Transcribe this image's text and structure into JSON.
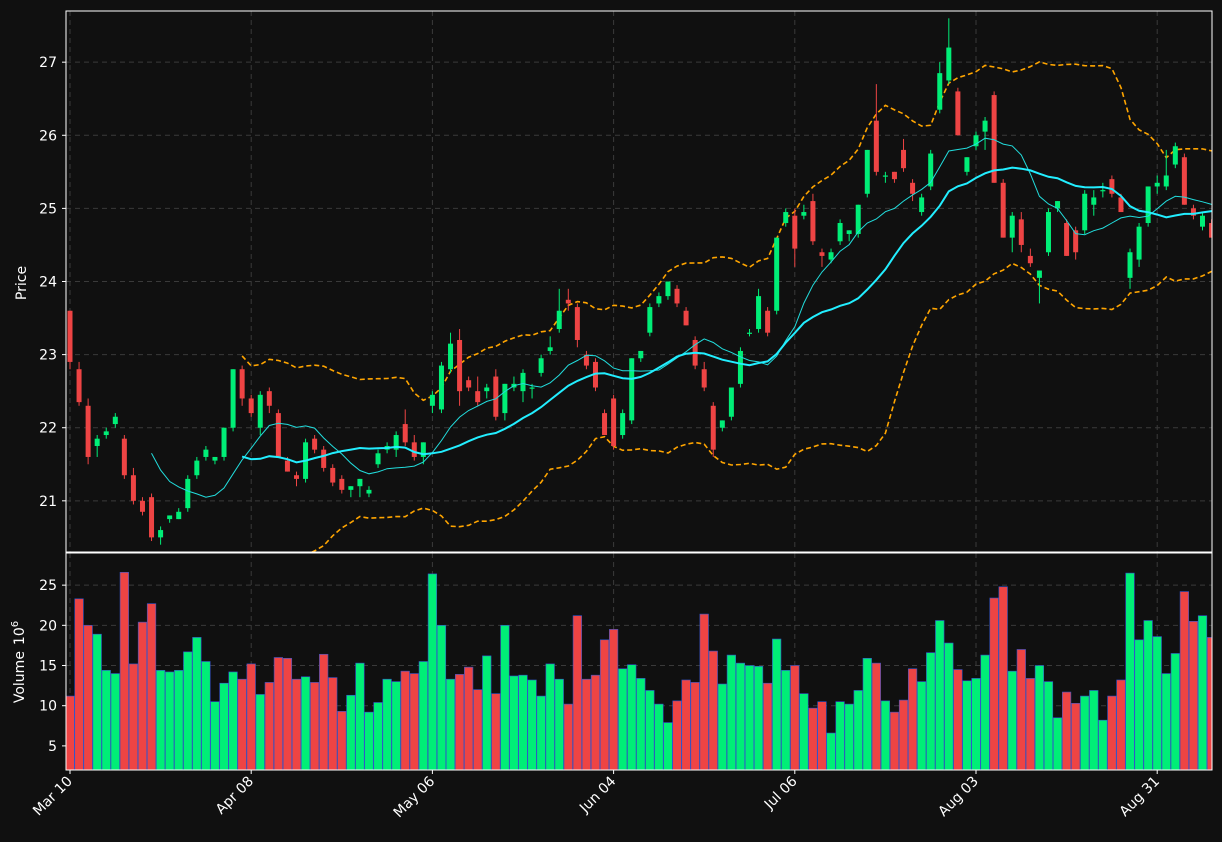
{
  "chart_data": {
    "type": "candlestick",
    "price_panel": {
      "ylabel": "Price",
      "ylim": [
        20.3,
        27.7
      ],
      "yticks": [
        21,
        22,
        23,
        24,
        25,
        26,
        27
      ]
    },
    "volume_panel": {
      "ylabel": "Volume",
      "ylabel_exponent": "6",
      "ylim": [
        2,
        29
      ],
      "yticks": [
        5,
        10,
        15,
        20,
        25
      ]
    },
    "grid": true,
    "xticks": [
      {
        "index": 0,
        "label": "Mar 10"
      },
      {
        "index": 20,
        "label": "Apr 08"
      },
      {
        "index": 40,
        "label": "May 06"
      },
      {
        "index": 60,
        "label": "Jun 04"
      },
      {
        "index": 80,
        "label": "Jul 06"
      },
      {
        "index": 100,
        "label": "Aug 03"
      },
      {
        "index": 120,
        "label": "Aug 31"
      }
    ],
    "colors": {
      "background": "#101010",
      "up": "#00ee77",
      "down": "#ee4444",
      "volume_edge": "#3355cc",
      "ma_short": "#22dddd",
      "ma_long": "#22eeff",
      "bollinger": "#ffa500",
      "axes": "#ffffff"
    },
    "ohlc": [
      [
        23.6,
        23.6,
        22.8,
        22.9
      ],
      [
        22.8,
        22.9,
        22.3,
        22.35
      ],
      [
        22.3,
        22.4,
        21.5,
        21.6
      ],
      [
        21.75,
        21.9,
        21.6,
        21.85
      ],
      [
        21.9,
        22.0,
        21.85,
        21.95
      ],
      [
        22.05,
        22.2,
        22.0,
        22.15
      ],
      [
        21.85,
        21.9,
        21.3,
        21.35
      ],
      [
        21.35,
        21.45,
        20.95,
        21.0
      ],
      [
        21.0,
        21.05,
        20.8,
        20.85
      ],
      [
        21.05,
        21.1,
        20.45,
        20.5
      ],
      [
        20.5,
        20.65,
        20.4,
        20.6
      ],
      [
        20.75,
        20.8,
        20.7,
        20.8
      ],
      [
        20.75,
        20.9,
        20.75,
        20.85
      ],
      [
        20.9,
        21.35,
        20.85,
        21.3
      ],
      [
        21.35,
        21.6,
        21.3,
        21.55
      ],
      [
        21.6,
        21.75,
        21.55,
        21.7
      ],
      [
        21.55,
        21.6,
        21.5,
        21.6
      ],
      [
        21.6,
        22.0,
        21.55,
        22.0
      ],
      [
        22.0,
        22.8,
        21.95,
        22.8
      ],
      [
        22.8,
        22.85,
        22.3,
        22.4
      ],
      [
        22.4,
        22.45,
        22.15,
        22.2
      ],
      [
        22.0,
        22.5,
        21.9,
        22.45
      ],
      [
        22.5,
        22.55,
        22.2,
        22.3
      ],
      [
        22.2,
        22.25,
        21.6,
        21.6
      ],
      [
        21.55,
        21.6,
        21.4,
        21.4
      ],
      [
        21.35,
        21.4,
        21.2,
        21.3
      ],
      [
        21.3,
        21.85,
        21.25,
        21.8
      ],
      [
        21.85,
        21.9,
        21.65,
        21.7
      ],
      [
        21.7,
        21.75,
        21.4,
        21.45
      ],
      [
        21.45,
        21.5,
        21.2,
        21.25
      ],
      [
        21.3,
        21.35,
        21.1,
        21.15
      ],
      [
        21.15,
        21.2,
        21.05,
        21.2
      ],
      [
        21.2,
        21.3,
        21.05,
        21.3
      ],
      [
        21.1,
        21.2,
        21.05,
        21.15
      ],
      [
        21.5,
        21.7,
        21.45,
        21.65
      ],
      [
        21.7,
        21.8,
        21.65,
        21.75
      ],
      [
        21.7,
        21.95,
        21.6,
        21.9
      ],
      [
        22.05,
        22.25,
        21.75,
        21.8
      ],
      [
        21.8,
        21.9,
        21.55,
        21.6
      ],
      [
        21.6,
        21.8,
        21.5,
        21.8
      ],
      [
        22.3,
        22.5,
        22.2,
        22.45
      ],
      [
        22.25,
        22.9,
        22.2,
        22.85
      ],
      [
        22.8,
        23.3,
        22.75,
        23.15
      ],
      [
        23.2,
        23.35,
        22.3,
        22.5
      ],
      [
        22.65,
        22.7,
        22.5,
        22.55
      ],
      [
        22.5,
        22.7,
        22.3,
        22.35
      ],
      [
        22.5,
        22.6,
        22.4,
        22.55
      ],
      [
        22.7,
        22.8,
        22.1,
        22.15
      ],
      [
        22.2,
        22.6,
        22.1,
        22.6
      ],
      [
        22.55,
        22.7,
        22.5,
        22.6
      ],
      [
        22.5,
        22.8,
        22.35,
        22.75
      ],
      [
        22.55,
        22.6,
        22.4,
        22.55
      ],
      [
        22.75,
        23.0,
        22.7,
        22.95
      ],
      [
        23.05,
        23.25,
        23.0,
        23.1
      ],
      [
        23.35,
        23.9,
        23.3,
        23.6
      ],
      [
        23.75,
        23.9,
        23.6,
        23.7
      ],
      [
        23.65,
        23.7,
        23.1,
        23.2
      ],
      [
        23.0,
        23.05,
        22.8,
        22.85
      ],
      [
        22.9,
        22.95,
        22.5,
        22.55
      ],
      [
        22.2,
        22.25,
        21.9,
        21.9
      ],
      [
        22.4,
        22.45,
        21.7,
        21.75
      ],
      [
        21.9,
        22.25,
        21.85,
        22.2
      ],
      [
        22.1,
        22.95,
        22.05,
        22.95
      ],
      [
        22.95,
        23.05,
        22.9,
        23.05
      ],
      [
        23.3,
        23.7,
        23.25,
        23.65
      ],
      [
        23.7,
        23.85,
        23.65,
        23.8
      ],
      [
        23.8,
        24.0,
        23.75,
        24.0
      ],
      [
        23.9,
        23.95,
        23.65,
        23.7
      ],
      [
        23.6,
        23.65,
        23.4,
        23.4
      ],
      [
        23.2,
        23.25,
        22.8,
        22.85
      ],
      [
        22.8,
        22.9,
        22.5,
        22.55
      ],
      [
        22.3,
        22.35,
        21.6,
        21.7
      ],
      [
        22.0,
        22.1,
        21.95,
        22.1
      ],
      [
        22.15,
        22.55,
        22.1,
        22.55
      ],
      [
        22.6,
        23.1,
        22.55,
        23.05
      ],
      [
        23.3,
        23.35,
        23.25,
        23.3
      ],
      [
        23.35,
        23.9,
        23.3,
        23.8
      ],
      [
        23.6,
        23.65,
        23.25,
        23.3
      ],
      [
        23.6,
        24.6,
        23.55,
        24.6
      ],
      [
        24.8,
        25.0,
        24.75,
        24.95
      ],
      [
        24.9,
        25.0,
        24.2,
        24.45
      ],
      [
        24.9,
        25.05,
        24.85,
        24.95
      ],
      [
        25.1,
        25.2,
        24.5,
        24.55
      ],
      [
        24.4,
        24.45,
        24.2,
        24.35
      ],
      [
        24.3,
        24.45,
        24.25,
        24.4
      ],
      [
        24.55,
        24.85,
        24.5,
        24.8
      ],
      [
        24.65,
        24.7,
        24.55,
        24.7
      ],
      [
        24.65,
        25.05,
        24.6,
        25.05
      ],
      [
        25.2,
        25.8,
        25.15,
        25.8
      ],
      [
        26.2,
        26.7,
        25.45,
        25.5
      ],
      [
        25.45,
        25.5,
        25.35,
        25.45
      ],
      [
        25.5,
        25.5,
        25.35,
        25.4
      ],
      [
        25.8,
        25.95,
        25.5,
        25.55
      ],
      [
        25.35,
        25.4,
        25.1,
        25.2
      ],
      [
        24.95,
        25.2,
        24.9,
        25.15
      ],
      [
        25.3,
        25.8,
        25.25,
        25.75
      ],
      [
        26.35,
        27.0,
        26.3,
        26.85
      ],
      [
        26.75,
        27.6,
        26.7,
        27.2
      ],
      [
        26.6,
        26.65,
        26.0,
        26.0
      ],
      [
        25.5,
        25.7,
        25.45,
        25.7
      ],
      [
        25.85,
        26.05,
        25.8,
        26.0
      ],
      [
        26.05,
        26.25,
        25.8,
        26.2
      ],
      [
        26.55,
        26.6,
        25.35,
        25.35
      ],
      [
        25.35,
        25.4,
        24.6,
        24.6
      ],
      [
        24.6,
        24.95,
        24.4,
        24.9
      ],
      [
        24.85,
        24.95,
        24.4,
        24.5
      ],
      [
        24.35,
        24.45,
        24.2,
        24.25
      ],
      [
        24.05,
        24.15,
        23.7,
        24.15
      ],
      [
        24.4,
        25.0,
        24.35,
        24.95
      ],
      [
        25.0,
        25.1,
        24.95,
        25.1
      ],
      [
        24.8,
        24.85,
        24.35,
        24.35
      ],
      [
        24.7,
        24.75,
        24.3,
        24.4
      ],
      [
        24.7,
        25.25,
        24.65,
        25.2
      ],
      [
        25.05,
        25.25,
        24.9,
        25.15
      ],
      [
        25.25,
        25.35,
        25.15,
        25.25
      ],
      [
        25.4,
        25.45,
        25.15,
        25.2
      ],
      [
        25.15,
        25.2,
        24.95,
        24.95
      ],
      [
        24.05,
        24.45,
        23.9,
        24.4
      ],
      [
        24.3,
        24.8,
        24.2,
        24.75
      ],
      [
        24.8,
        25.3,
        24.75,
        25.3
      ],
      [
        25.3,
        25.45,
        25.2,
        25.35
      ],
      [
        25.3,
        25.8,
        25.25,
        25.45
      ],
      [
        25.6,
        25.9,
        25.55,
        25.85
      ],
      [
        25.7,
        25.75,
        25.05,
        25.05
      ],
      [
        25.0,
        25.05,
        24.85,
        24.9
      ],
      [
        24.75,
        24.95,
        24.7,
        24.9
      ],
      [
        24.8,
        24.85,
        24.6,
        24.6
      ]
    ],
    "volume": [
      11.2,
      23.3,
      20.0,
      18.9,
      14.4,
      14.0,
      26.6,
      15.2,
      20.4,
      22.7,
      14.4,
      14.2,
      14.4,
      16.7,
      18.5,
      15.5,
      10.5,
      12.8,
      14.2,
      13.3,
      15.2,
      11.4,
      12.9,
      16.0,
      15.9,
      13.3,
      13.6,
      12.9,
      16.4,
      13.5,
      9.3,
      11.3,
      15.3,
      9.2,
      10.4,
      13.3,
      13.0,
      14.3,
      14.0,
      15.5,
      26.4,
      20.0,
      13.3,
      13.9,
      14.8,
      12.0,
      16.2,
      11.5,
      20.0,
      13.7,
      13.8,
      13.2,
      11.2,
      15.2,
      13.3,
      10.2,
      21.2,
      13.3,
      13.8,
      18.2,
      19.5,
      14.6,
      15.1,
      13.4,
      11.9,
      10.2,
      7.9,
      10.6,
      13.2,
      12.9,
      21.4,
      16.8,
      12.7,
      16.3,
      15.3,
      15.0,
      14.9,
      12.8,
      18.3,
      14.4,
      15.0,
      11.5,
      9.7,
      10.5,
      6.6,
      10.5,
      10.2,
      11.9,
      15.9,
      15.3,
      10.6,
      9.2,
      10.7,
      14.6,
      13.0,
      16.6,
      20.6,
      17.8,
      14.5,
      13.1,
      13.4,
      16.3,
      23.4,
      24.8,
      14.3,
      17.0,
      13.4,
      15.0,
      13.0,
      8.5,
      11.7,
      10.3,
      11.2,
      11.9,
      8.2,
      11.2,
      13.2,
      26.5,
      18.2,
      20.6,
      18.6,
      14.0,
      16.5,
      24.2,
      20.5,
      21.2,
      18.5
    ]
  }
}
